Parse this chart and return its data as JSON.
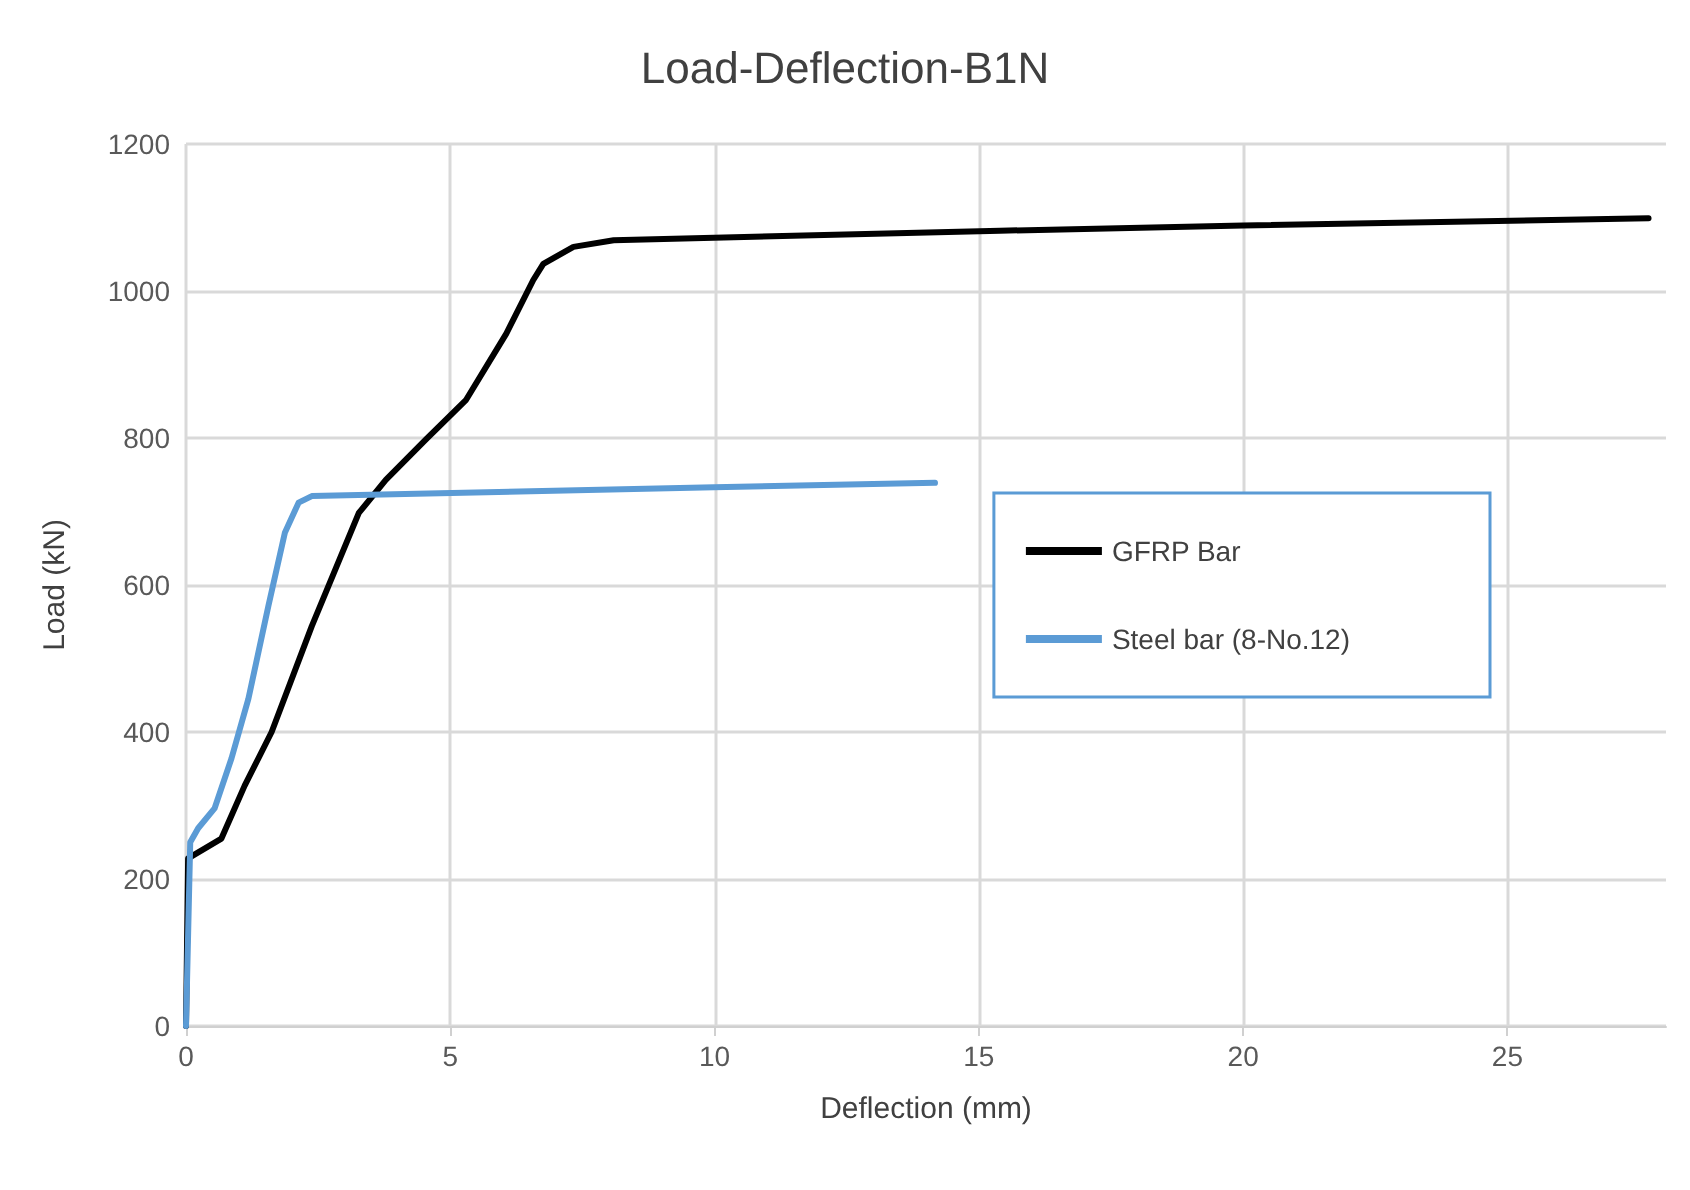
{
  "chart_data": {
    "type": "line",
    "title": "Load-Deflection-B1N",
    "xlabel": "Deflection (mm)",
    "ylabel": "Load (kN)",
    "xlim": [
      0,
      28
    ],
    "xticks": [
      0,
      5,
      10,
      15,
      20,
      25
    ],
    "ylim": [
      0,
      1200
    ],
    "yticks": [
      0,
      200,
      400,
      600,
      800,
      1000,
      1200
    ],
    "grid": true,
    "legend": "right",
    "marker": "none",
    "line_style": "solid",
    "series": [
      {
        "name": "GFRP Bar",
        "color": "#000000",
        "x": [
          0,
          0.04,
          0.67,
          1.11,
          1.62,
          2.38,
          3.27,
          3.78,
          4.54,
          5.3,
          6.06,
          6.57,
          6.76,
          7.33,
          8.09,
          15.4,
          20.0,
          27.67
        ],
        "values": [
          0,
          228,
          255,
          327,
          400,
          544,
          698,
          743,
          798,
          852,
          942,
          1015,
          1037,
          1060,
          1069,
          1082,
          1089,
          1099
        ]
      },
      {
        "name": "Steel bar (8-No.12)",
        "color": "#5b9bd5",
        "x": [
          0,
          0.08,
          0.23,
          0.54,
          0.86,
          1.18,
          1.56,
          1.87,
          2.13,
          2.38,
          9.99,
          14.17
        ],
        "values": [
          0,
          250,
          269,
          296,
          364,
          445,
          572,
          671,
          712,
          721,
          733,
          739
        ]
      }
    ]
  }
}
